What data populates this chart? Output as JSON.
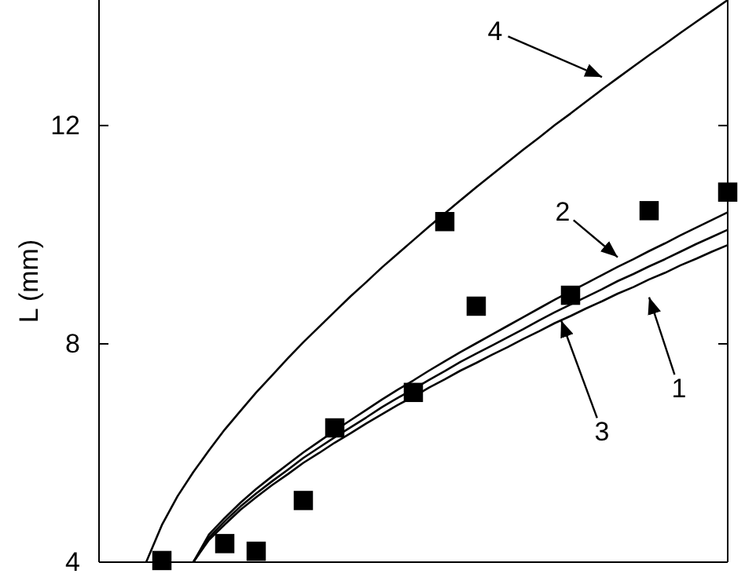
{
  "chart_data": {
    "type": "line",
    "ylabel": "L (mm)",
    "categories": [
      null,
      null,
      null,
      null,
      null,
      null,
      null,
      null,
      null,
      null,
      null,
      null,
      null,
      null,
      null,
      null,
      null,
      null,
      null,
      null,
      null,
      null,
      null,
      null,
      null,
      null,
      null,
      null,
      null,
      null,
      null,
      null,
      null,
      null,
      null,
      null,
      null,
      null,
      null,
      null,
      null
    ],
    "ylim": [
      4,
      14.3
    ],
    "yticks": [
      4,
      8,
      12
    ],
    "tick_labels": "y",
    "series": [
      {
        "color": "#000000",
        "type": "scatter",
        "marker": "square",
        "values": [
          null,
          null,
          null,
          null,
          4.03,
          null,
          null,
          null,
          4.34,
          null,
          4.2,
          null,
          null,
          5.13,
          null,
          6.46,
          null,
          null,
          null,
          null,
          7.11,
          null,
          10.24,
          null,
          8.69,
          null,
          null,
          null,
          null,
          null,
          8.89,
          null,
          null,
          null,
          null,
          10.44,
          null,
          null,
          null,
          null,
          10.78
        ]
      },
      {
        "color": "#000000",
        "values": [
          null,
          null,
          null,
          null,
          null,
          null,
          4.0,
          4.41,
          4.69,
          4.96,
          5.19,
          5.41,
          5.61,
          5.82,
          6.0,
          6.19,
          6.36,
          6.54,
          6.71,
          6.88,
          7.03,
          7.2,
          7.35,
          7.51,
          7.65,
          7.8,
          7.94,
          8.09,
          8.23,
          8.38,
          8.51,
          8.65,
          8.78,
          8.92,
          9.04,
          9.18,
          9.3,
          9.44,
          9.56,
          9.69,
          9.81
        ]
      },
      {
        "color": "#000000",
        "values": [
          null,
          null,
          null,
          null,
          null,
          null,
          4.0,
          4.51,
          4.81,
          5.09,
          5.34,
          5.57,
          5.79,
          6.01,
          6.21,
          6.41,
          6.6,
          6.79,
          6.98,
          7.16,
          7.33,
          7.51,
          7.68,
          7.85,
          8.01,
          8.17,
          8.33,
          8.49,
          8.65,
          8.81,
          8.96,
          9.11,
          9.26,
          9.41,
          9.55,
          9.7,
          9.84,
          9.99,
          10.13,
          10.27,
          10.41
        ]
      },
      {
        "color": "#000000",
        "values": [
          null,
          null,
          null,
          null,
          null,
          null,
          4.0,
          4.45,
          4.75,
          5.02,
          5.26,
          5.48,
          5.69,
          5.91,
          6.1,
          6.29,
          6.47,
          6.65,
          6.84,
          7.01,
          7.17,
          7.34,
          7.5,
          7.67,
          7.82,
          7.97,
          8.12,
          8.27,
          8.43,
          8.58,
          8.72,
          8.86,
          9.0,
          9.15,
          9.28,
          9.42,
          9.55,
          9.69,
          9.83,
          9.96,
          10.09
        ]
      },
      {
        "color": "#000000",
        "values": [
          null,
          null,
          null,
          4.0,
          4.68,
          5.21,
          5.65,
          6.05,
          6.43,
          6.77,
          7.11,
          7.42,
          7.73,
          8.03,
          8.31,
          8.59,
          8.87,
          9.13,
          9.4,
          9.65,
          9.9,
          10.15,
          10.39,
          10.63,
          10.87,
          11.1,
          11.33,
          11.56,
          11.78,
          12.01,
          12.22,
          12.44,
          12.66,
          12.87,
          13.08,
          13.29,
          13.49,
          13.7,
          13.9,
          14.1,
          14.3
        ]
      }
    ],
    "annotations": [
      "1",
      "2",
      "3",
      "4"
    ]
  }
}
